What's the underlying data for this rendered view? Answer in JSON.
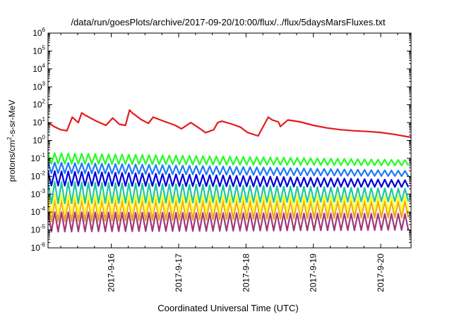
{
  "chart_data": {
    "type": "line",
    "title": "/data/run/goesPlots/archive/2017-09-20/10:00/flux/../flux/5daysMarsFluxes.txt",
    "xlabel": "Coordinated Universal Time (UTC)",
    "ylabel": {
      "base": "protons/cm",
      "sup": "2",
      "rest": "-s-sr-MeV"
    },
    "x_unit": "days (2017-9-15 to 2017-9-20)",
    "xlim": [
      15.06,
      20.45
    ],
    "x_ticks": [
      {
        "value": 16,
        "label": "2017-9-16"
      },
      {
        "value": 17,
        "label": "2017-9-17"
      },
      {
        "value": 18,
        "label": "2017-9-18"
      },
      {
        "value": 19,
        "label": "2017-9-19"
      },
      {
        "value": 20,
        "label": "2017-9-20"
      }
    ],
    "y_scale": "log",
    "ylim": [
      1e-06,
      1000000.0
    ],
    "y_ticks": [
      {
        "value": 1e-06,
        "base": "10",
        "exp": "-6"
      },
      {
        "value": 1e-05,
        "base": "10",
        "exp": "-5"
      },
      {
        "value": 0.0001,
        "base": "10",
        "exp": "-4"
      },
      {
        "value": 0.001,
        "base": "10",
        "exp": "-3"
      },
      {
        "value": 0.01,
        "base": "10",
        "exp": "-2"
      },
      {
        "value": 0.1,
        "base": "10",
        "exp": "-1"
      },
      {
        "value": 1,
        "base": "10",
        "exp": "0"
      },
      {
        "value": 10,
        "base": "10",
        "exp": "1"
      },
      {
        "value": 100,
        "base": "10",
        "exp": "2"
      },
      {
        "value": 1000,
        "base": "10",
        "exp": "3"
      },
      {
        "value": 10000,
        "base": "10",
        "exp": "4"
      },
      {
        "value": 100000,
        "base": "10",
        "exp": "5"
      },
      {
        "value": 1000000,
        "base": "10",
        "exp": "6"
      }
    ],
    "grid": false,
    "legend": "none",
    "series": [
      {
        "color": "#e41a1c",
        "x": [
          15.06,
          15.15,
          15.25,
          15.34,
          15.42,
          15.51,
          15.56,
          15.62,
          15.78,
          15.92,
          16.02,
          16.12,
          16.21,
          16.27,
          16.31,
          16.44,
          16.55,
          16.62,
          16.78,
          16.95,
          17.04,
          17.18,
          17.32,
          17.4,
          17.52,
          17.58,
          17.64,
          17.8,
          17.92,
          18.02,
          18.18,
          18.33,
          18.39,
          18.48,
          18.51,
          18.62,
          18.8,
          19.0,
          19.2,
          19.4,
          19.6,
          19.8,
          20.0,
          20.2,
          20.45
        ],
        "y": [
          10,
          6,
          4,
          3.5,
          20,
          10,
          35,
          25,
          12,
          7,
          18,
          8,
          7,
          50,
          35,
          15,
          9,
          20,
          12,
          7,
          4.5,
          10,
          4.5,
          2.7,
          4,
          10,
          12,
          8,
          5.5,
          2.8,
          1.8,
          20,
          14,
          11,
          6,
          14,
          11,
          7,
          5,
          4,
          3.5,
          3.2,
          2.8,
          2.2,
          1.5
        ]
      }
    ],
    "sawtooth_series": [
      {
        "color": "#22ff22",
        "start": 15.06,
        "end": 20.45,
        "period": 0.1,
        "peak": 0.2,
        "trough": 0.05,
        "late_peak": 0.08,
        "late_trough": 0.04
      },
      {
        "color": "#1f78ff",
        "start": 15.06,
        "end": 20.45,
        "period": 0.1,
        "peak": 0.06,
        "trough": 0.015,
        "late_peak": 0.02,
        "late_trough": 0.01
      },
      {
        "color": "#0000dd",
        "start": 15.06,
        "end": 20.45,
        "period": 0.1,
        "peak": 0.02,
        "trough": 0.003,
        "late_peak": 0.006,
        "late_trough": 0.0025
      },
      {
        "color": "#1fc8a0",
        "start": 15.06,
        "end": 20.45,
        "period": 0.1,
        "peak": 0.005,
        "trough": 0.0003,
        "late_peak": 0.002,
        "late_trough": 0.0004
      },
      {
        "color": "#ffff33",
        "start": 15.06,
        "end": 20.45,
        "period": 0.1,
        "peak": 0.001,
        "trough": 8e-05,
        "late_peak": 0.0008,
        "late_trough": 0.00012
      },
      {
        "color": "#f0a020",
        "start": 15.06,
        "end": 20.45,
        "period": 0.1,
        "peak": 0.0005,
        "trough": 3e-05,
        "late_peak": 0.0004,
        "late_trough": 5e-05
      },
      {
        "color": "#9e3a7a",
        "start": 15.06,
        "end": 20.45,
        "period": 0.1,
        "peak": 0.0001,
        "trough": 8e-06,
        "late_peak": 8e-05,
        "late_trough": 1e-05
      }
    ]
  }
}
